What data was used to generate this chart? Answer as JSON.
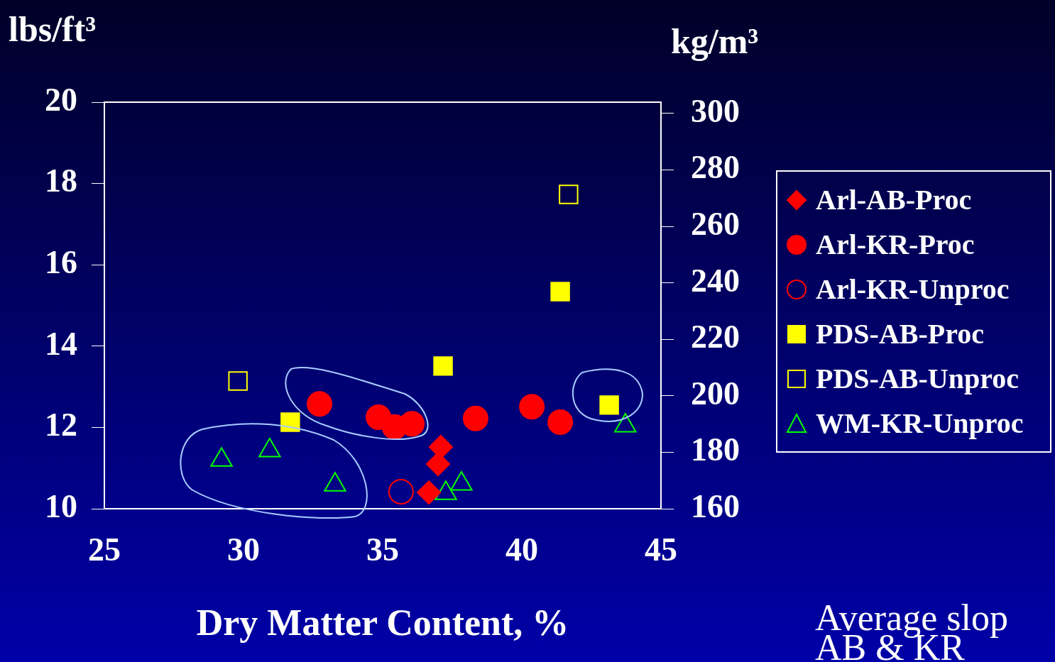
{
  "chart_data": {
    "type": "scatter",
    "xlabel": "Dry Matter Content, %",
    "ylabel": "lbs/ft³",
    "y2label": "kg/m³",
    "xlim": [
      25,
      45
    ],
    "xticks": [
      25,
      30,
      35,
      40,
      45
    ],
    "ylim": [
      10,
      20
    ],
    "yticks": [
      10,
      12,
      14,
      16,
      18,
      20
    ],
    "y2lim": [
      160,
      304
    ],
    "y2ticks": [
      160,
      180,
      200,
      220,
      240,
      260,
      280,
      300
    ],
    "grid": false,
    "legend": "right",
    "annotations": [
      "Average slop",
      "AB & KR"
    ],
    "series": [
      {
        "name": "Arl-AB-Proc",
        "color": "#ff0000",
        "marker": "diamond",
        "x": [
          37.09,
          36.99,
          36.66
        ],
        "values": [
          11.52,
          11.1,
          10.4
        ]
      },
      {
        "name": "Arl-KR-Proc",
        "color": "#ff0000",
        "marker": "circle",
        "x": [
          32.73,
          34.85,
          35.43,
          36.05,
          38.34,
          40.36,
          41.38
        ],
        "values": [
          12.58,
          12.25,
          12.01,
          12.09,
          12.22,
          12.51,
          12.13
        ]
      },
      {
        "name": "Arl-KR-Unproc",
        "color": "#ff0000",
        "marker": "circle",
        "x": [
          35.66
        ],
        "values": [
          10.42
        ]
      },
      {
        "name": "PDS-AB-Proc",
        "color": "#ffff00",
        "marker": "square",
        "x": [
          31.68,
          37.17,
          41.38,
          43.14
        ],
        "values": [
          12.13,
          13.51,
          15.34,
          12.55
        ]
      },
      {
        "name": "PDS-AB-Unproc",
        "color": "#ffff00",
        "marker": "square",
        "x": [
          29.8,
          41.68
        ],
        "values": [
          13.14,
          17.73
        ]
      },
      {
        "name": "WM-KR-Unproc",
        "color": "#00ff00",
        "marker": "triangle",
        "x": [
          29.21,
          30.94,
          33.29,
          37.27,
          37.83,
          43.72
        ],
        "values": [
          11.2,
          11.43,
          10.59,
          10.38,
          10.61,
          12.04
        ]
      }
    ]
  }
}
